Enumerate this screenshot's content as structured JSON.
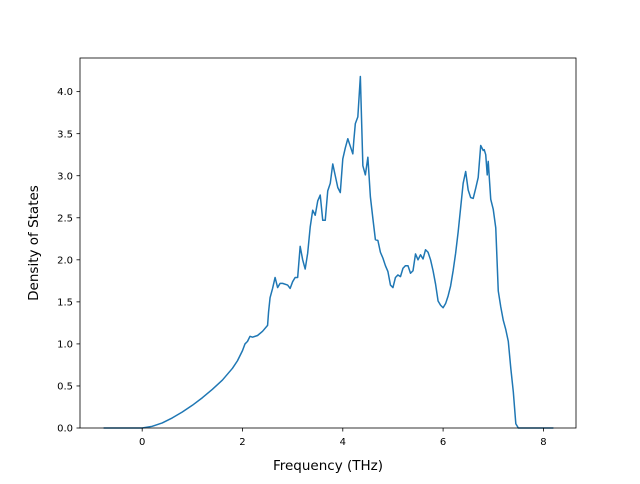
{
  "chart_data": {
    "type": "line",
    "xlabel": "Frequency (THz)",
    "ylabel": "Density of States",
    "xlim": [
      -1.24,
      8.65
    ],
    "ylim": [
      0.0,
      4.4
    ],
    "xticks": [
      0,
      2,
      4,
      6,
      8
    ],
    "yticks": [
      0.0,
      0.5,
      1.0,
      1.5,
      2.0,
      2.5,
      3.0,
      3.5,
      4.0
    ],
    "xtick_labels": [
      "0",
      "2",
      "4",
      "6",
      "8"
    ],
    "ytick_labels": [
      "0.0",
      "0.5",
      "1.0",
      "1.5",
      "2.0",
      "2.5",
      "3.0",
      "3.5",
      "4.0"
    ],
    "grid": false,
    "series": [
      {
        "color": "#1f77b4",
        "x": [
          -0.77,
          0.0,
          0.2,
          0.4,
          0.6,
          0.8,
          1.0,
          1.2,
          1.4,
          1.6,
          1.8,
          1.9,
          2.0,
          2.05,
          2.1,
          2.15,
          2.2,
          2.3,
          2.4,
          2.5,
          2.52,
          2.55,
          2.6,
          2.65,
          2.7,
          2.75,
          2.8,
          2.9,
          2.95,
          3.0,
          3.05,
          3.1,
          3.15,
          3.2,
          3.25,
          3.3,
          3.35,
          3.4,
          3.45,
          3.5,
          3.55,
          3.6,
          3.65,
          3.7,
          3.75,
          3.8,
          3.85,
          3.9,
          3.95,
          4.0,
          4.05,
          4.1,
          4.15,
          4.2,
          4.22,
          4.25,
          4.3,
          4.35,
          4.4,
          4.45,
          4.5,
          4.55,
          4.6,
          4.65,
          4.7,
          4.75,
          4.8,
          4.85,
          4.9,
          4.95,
          5.0,
          5.05,
          5.1,
          5.15,
          5.2,
          5.25,
          5.3,
          5.35,
          5.4,
          5.45,
          5.5,
          5.55,
          5.6,
          5.65,
          5.7,
          5.75,
          5.8,
          5.85,
          5.9,
          5.95,
          6.0,
          6.05,
          6.1,
          6.15,
          6.2,
          6.25,
          6.3,
          6.35,
          6.4,
          6.45,
          6.5,
          6.55,
          6.6,
          6.65,
          6.7,
          6.75,
          6.8,
          6.82,
          6.85,
          6.88,
          6.9,
          6.95,
          7.0,
          7.05,
          7.1,
          7.15,
          7.2,
          7.25,
          7.3,
          7.35,
          7.4,
          7.45,
          7.5,
          8.2
        ],
        "y": [
          0.0,
          0.0,
          0.02,
          0.06,
          0.12,
          0.19,
          0.27,
          0.36,
          0.46,
          0.57,
          0.71,
          0.8,
          0.92,
          1.0,
          1.03,
          1.09,
          1.08,
          1.1,
          1.15,
          1.22,
          1.38,
          1.55,
          1.66,
          1.79,
          1.67,
          1.72,
          1.72,
          1.7,
          1.66,
          1.74,
          1.79,
          1.79,
          2.16,
          2.0,
          1.89,
          2.08,
          2.39,
          2.59,
          2.53,
          2.7,
          2.77,
          2.47,
          2.47,
          2.82,
          2.91,
          3.14,
          3.0,
          2.86,
          2.8,
          3.2,
          3.33,
          3.44,
          3.35,
          3.26,
          3.42,
          3.62,
          3.7,
          4.18,
          3.12,
          3.01,
          3.22,
          2.75,
          2.49,
          2.24,
          2.23,
          2.09,
          2.02,
          1.93,
          1.86,
          1.7,
          1.67,
          1.79,
          1.82,
          1.8,
          1.9,
          1.93,
          1.93,
          1.84,
          1.87,
          2.07,
          2.0,
          2.06,
          2.01,
          2.12,
          2.09,
          2.0,
          1.87,
          1.71,
          1.51,
          1.46,
          1.43,
          1.48,
          1.57,
          1.69,
          1.87,
          2.08,
          2.33,
          2.62,
          2.91,
          3.05,
          2.83,
          2.74,
          2.73,
          2.85,
          2.98,
          3.36,
          3.3,
          3.31,
          3.25,
          3.01,
          3.17,
          2.72,
          2.6,
          2.38,
          1.63,
          1.44,
          1.28,
          1.17,
          1.03,
          0.71,
          0.43,
          0.05,
          0.0,
          0.0
        ]
      }
    ]
  }
}
